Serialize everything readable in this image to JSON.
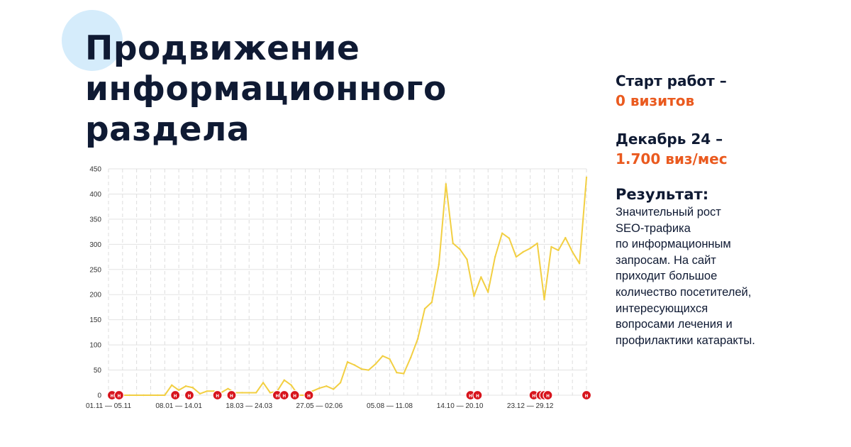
{
  "title_lines": [
    "Продвижение",
    "информационного",
    "раздела"
  ],
  "start": {
    "label": "Старт работ –",
    "value": "0 визитов"
  },
  "december": {
    "label": "Декабрь 24 –",
    "value": "1.700 виз/мес"
  },
  "result": {
    "title": "Результат:",
    "lines": [
      "Значительный рост",
      "SEO-трафика",
      "по информационным",
      "запросам. На сайт",
      "приходит большое",
      "количество посетителей,",
      "интересующихся",
      "вопросами лечения и",
      "профилактики катаракты."
    ]
  },
  "colors": {
    "accent": "#ea5a1f",
    "title": "#0f1a33",
    "line": "#f2cf42",
    "marker": "#d7141c",
    "circle": "#d5ecfb"
  },
  "chart_data": {
    "type": "line",
    "ylim": [
      0,
      450
    ],
    "yticks": [
      0,
      50,
      100,
      150,
      200,
      250,
      300,
      350,
      400,
      450
    ],
    "grid": true,
    "xtick_labels": [
      {
        "index": 0,
        "label": "01.11 — 05.11"
      },
      {
        "index": 10,
        "label": "08.01 — 14.01"
      },
      {
        "index": 20,
        "label": "18.03 — 24.03"
      },
      {
        "index": 30,
        "label": "27.05 — 02.06"
      },
      {
        "index": 40,
        "label": "05.08 — 11.08"
      },
      {
        "index": 50,
        "label": "14.10 — 20.10"
      },
      {
        "index": 60,
        "label": "23.12 — 29.12"
      }
    ],
    "series": [
      {
        "values": [
          0,
          0,
          0,
          0,
          0,
          0,
          0,
          0,
          0,
          20,
          10,
          18,
          15,
          3,
          8,
          8,
          5,
          13,
          5,
          5,
          5,
          5,
          25,
          5,
          8,
          30,
          20,
          0,
          0,
          8,
          14,
          18,
          12,
          25,
          66,
          60,
          52,
          50,
          62,
          78,
          72,
          45,
          43,
          75,
          112,
          172,
          185,
          260,
          420,
          302,
          290,
          270,
          197,
          235,
          205,
          275,
          322,
          312,
          275,
          285,
          292,
          302,
          190,
          295,
          288,
          313,
          285,
          262,
          433
        ]
      }
    ],
    "marker_label": "н",
    "markers": [
      0.5,
      1.5,
      9.5,
      11.5,
      15.5,
      17.5,
      24,
      25,
      26.5,
      28.5,
      51.5,
      52.5,
      60.5,
      61.5,
      62,
      62.5,
      68
    ]
  }
}
